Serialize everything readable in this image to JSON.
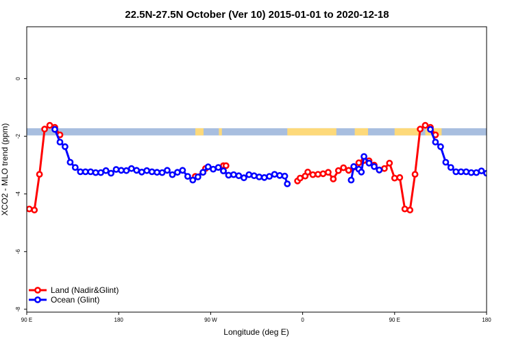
{
  "chart_data": {
    "type": "line",
    "title": "22.5N-27.5N October (Ver 10)   2015-01-01 to 2020-12-18",
    "xlabel": "Longitude (deg E)",
    "ylabel": "XCO2 - MLO trend (ppm)",
    "xlim": [
      90,
      540
    ],
    "ylim": [
      -8.1,
      1.8
    ],
    "x_ticks": [
      {
        "value": 90,
        "label": "90 E"
      },
      {
        "value": 180,
        "label": "180"
      },
      {
        "value": 270,
        "label": "90 W"
      },
      {
        "value": 360,
        "label": "0"
      },
      {
        "value": 450,
        "label": "90 E"
      },
      {
        "value": 540,
        "label": "180"
      }
    ],
    "y_ticks": [
      {
        "value": 0,
        "label": "0"
      },
      {
        "value": -2,
        "label": "-2"
      },
      {
        "value": -4,
        "label": "-4"
      },
      {
        "value": -6,
        "label": "-6"
      },
      {
        "value": -8,
        "label": "-8"
      }
    ],
    "grid": false,
    "legend_position": "bottom-left",
    "map_strip": {
      "y_top": -1.72,
      "y_bottom": -1.97,
      "ocean_color": "#a8bedf",
      "land_color": "#fdd97a",
      "land_spans": [
        [
          255,
          263
        ],
        [
          278,
          281
        ],
        [
          345,
          393
        ],
        [
          411,
          424
        ],
        [
          450,
          475
        ],
        [
          480,
          496
        ]
      ]
    },
    "series": [
      {
        "name": "Land (Nadir&Glint)",
        "color": "#ff0000",
        "segments": [
          [
            [
              92.5,
              -4.52
            ],
            [
              97.5,
              -4.56
            ],
            [
              102.5,
              -3.32
            ],
            [
              107.5,
              -1.75
            ],
            [
              112.5,
              -1.62
            ],
            [
              117.5,
              -1.69
            ],
            [
              122.5,
              -1.95
            ]
          ],
          [
            [
              255,
              -3.39
            ],
            [
              262.5,
              -3.25
            ],
            [
              265,
              -3.12
            ]
          ],
          [
            [
              282.5,
              -3.2
            ],
            [
              282.5,
              -3.02
            ],
            [
              285,
              -3.02
            ]
          ],
          [
            [
              355,
              -3.55
            ],
            [
              357.5,
              -3.45
            ],
            [
              362.5,
              -3.38
            ],
            [
              365,
              -3.24
            ],
            [
              370,
              -3.33
            ],
            [
              375,
              -3.32
            ],
            [
              380,
              -3.3
            ],
            [
              385,
              -3.25
            ],
            [
              390,
              -3.48
            ],
            [
              395,
              -3.19
            ],
            [
              400,
              -3.09
            ],
            [
              405,
              -3.18
            ],
            [
              410,
              -3.07
            ],
            [
              415,
              -2.92
            ],
            [
              420,
              -2.84
            ],
            [
              425,
              -2.85
            ],
            [
              430,
              -3.0
            ],
            [
              435,
              -3.17
            ],
            [
              440,
              -3.12
            ],
            [
              445,
              -2.93
            ],
            [
              450,
              -3.45
            ],
            [
              455,
              -3.43
            ],
            [
              460,
              -4.52
            ],
            [
              465,
              -4.56
            ],
            [
              470,
              -3.32
            ],
            [
              475,
              -1.75
            ],
            [
              480,
              -1.62
            ],
            [
              485,
              -1.69
            ],
            [
              490,
              -1.95
            ]
          ]
        ]
      },
      {
        "name": "Ocean (Glint)",
        "color": "#0000ff",
        "segments": [
          [
            [
              117.5,
              -1.76
            ],
            [
              122.5,
              -2.2
            ],
            [
              127.5,
              -2.36
            ],
            [
              132.5,
              -2.9
            ],
            [
              137.5,
              -3.08
            ],
            [
              142.5,
              -3.23
            ],
            [
              147.5,
              -3.23
            ],
            [
              152.5,
              -3.23
            ],
            [
              157.5,
              -3.26
            ],
            [
              162.5,
              -3.26
            ],
            [
              167.5,
              -3.19
            ],
            [
              172.5,
              -3.28
            ],
            [
              177.5,
              -3.15
            ],
            [
              182.5,
              -3.18
            ],
            [
              187.5,
              -3.19
            ],
            [
              192.5,
              -3.12
            ],
            [
              197.5,
              -3.18
            ],
            [
              202.5,
              -3.24
            ],
            [
              207.5,
              -3.19
            ],
            [
              212.5,
              -3.23
            ],
            [
              217.5,
              -3.25
            ],
            [
              222.5,
              -3.26
            ],
            [
              227.5,
              -3.18
            ],
            [
              232.5,
              -3.33
            ],
            [
              237.5,
              -3.25
            ],
            [
              242.5,
              -3.18
            ],
            [
              247.5,
              -3.39
            ],
            [
              252.5,
              -3.52
            ],
            [
              257.5,
              -3.41
            ],
            [
              262.5,
              -3.25
            ],
            [
              267.5,
              -3.06
            ],
            [
              272.5,
              -3.14
            ],
            [
              277.5,
              -3.08
            ],
            [
              282.5,
              -3.2
            ]
          ],
          [
            [
              282.5,
              -3.2
            ],
            [
              287.5,
              -3.35
            ],
            [
              292.5,
              -3.33
            ],
            [
              297.5,
              -3.37
            ],
            [
              302.5,
              -3.44
            ],
            [
              307.5,
              -3.33
            ],
            [
              312.5,
              -3.37
            ],
            [
              317.5,
              -3.41
            ],
            [
              322.5,
              -3.43
            ],
            [
              327.5,
              -3.39
            ],
            [
              332.5,
              -3.32
            ],
            [
              337.5,
              -3.36
            ],
            [
              342.5,
              -3.38
            ],
            [
              345,
              -3.65
            ]
          ],
          [
            [
              407.5,
              -3.52
            ],
            [
              410,
              -3.05
            ],
            [
              415,
              -3.14
            ],
            [
              417.5,
              -3.24
            ],
            [
              420,
              -2.7
            ],
            [
              425,
              -2.93
            ],
            [
              430,
              -3.05
            ],
            [
              435,
              -3.17
            ]
          ],
          [
            [
              485,
              -1.76
            ],
            [
              490,
              -2.2
            ],
            [
              495,
              -2.36
            ],
            [
              500,
              -2.9
            ],
            [
              505,
              -3.08
            ],
            [
              510,
              -3.23
            ],
            [
              515,
              -3.23
            ],
            [
              520,
              -3.23
            ],
            [
              525,
              -3.26
            ],
            [
              530,
              -3.26
            ],
            [
              535,
              -3.2
            ],
            [
              540,
              -3.28
            ],
            [
              545,
              -3.15
            ]
          ]
        ]
      }
    ]
  }
}
